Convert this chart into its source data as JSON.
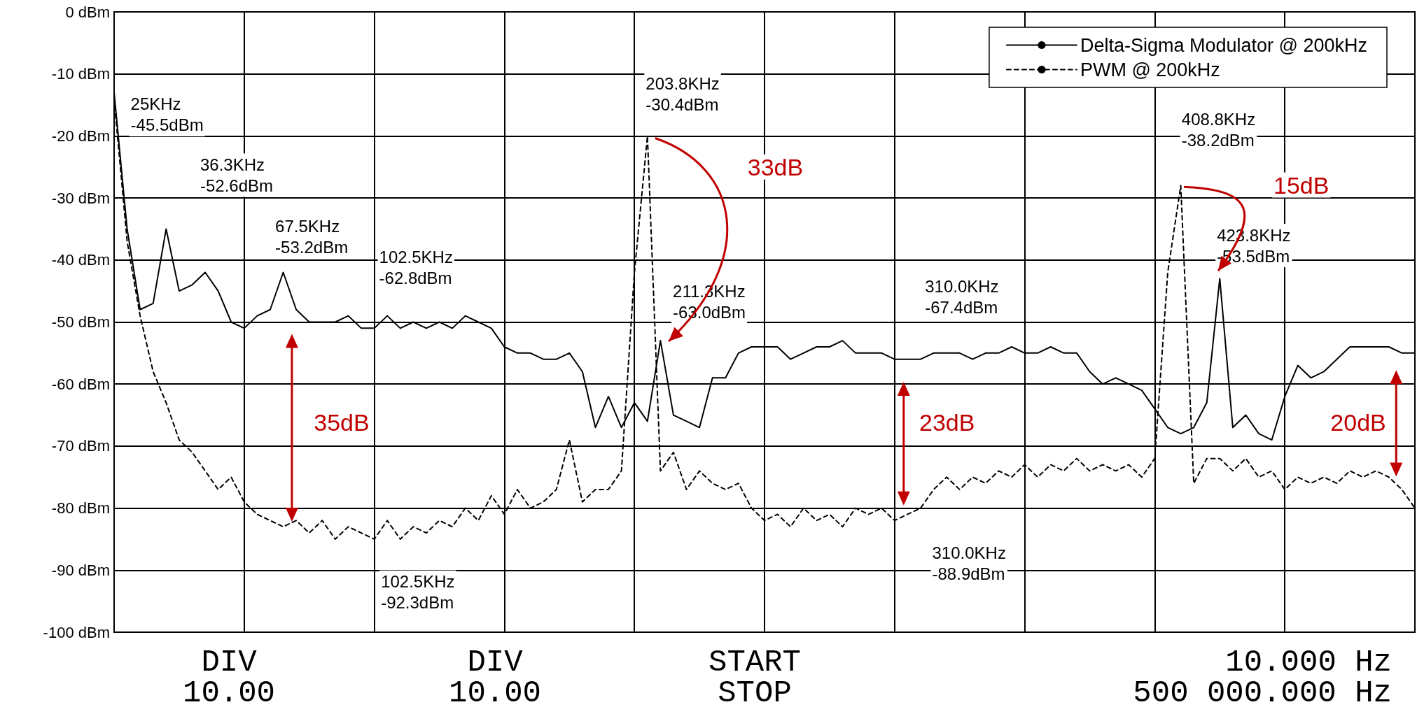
{
  "chart_data": {
    "type": "line",
    "categories": [
      null,
      null,
      null,
      null,
      null,
      null,
      null,
      null,
      null,
      null,
      null,
      null,
      null,
      null,
      null,
      null,
      null,
      null,
      null,
      null,
      null,
      null,
      null,
      null,
      null,
      null,
      null,
      null,
      null,
      null,
      null,
      null,
      null,
      null,
      null,
      null,
      null,
      null,
      null,
      null,
      null,
      null,
      null,
      null,
      null,
      null,
      null,
      null,
      null,
      null,
      null,
      null,
      null,
      null,
      null,
      null,
      null,
      null,
      null,
      null,
      null,
      null,
      null,
      null,
      null,
      null,
      null,
      null,
      null,
      null,
      null,
      null,
      null,
      null,
      null,
      null,
      null,
      null,
      null,
      null,
      null,
      null,
      null,
      null,
      null,
      null,
      null,
      null,
      null,
      null,
      null,
      null,
      null,
      null,
      null,
      null,
      null,
      null,
      null,
      null,
      null
    ],
    "ylim": [
      -100,
      0
    ],
    "yticks": [
      {
        "value": -100,
        "label": "-100 dBm"
      },
      {
        "value": -90,
        "label": "-90 dBm"
      },
      {
        "value": -80,
        "label": "-80 dBm"
      },
      {
        "value": -70,
        "label": "-70 dBm"
      },
      {
        "value": -60,
        "label": "-60 dBm"
      },
      {
        "value": -50,
        "label": "-50 dBm"
      },
      {
        "value": -40,
        "label": "-40 dBm"
      },
      {
        "value": -30,
        "label": "-30 dBm"
      },
      {
        "value": -20,
        "label": "-20 dBm"
      },
      {
        "value": -10,
        "label": "-10 dBm"
      },
      {
        "value": 0,
        "label": "0 dBm"
      }
    ],
    "tick_labels": "y",
    "grid": true,
    "legend": "top right",
    "marker": "none",
    "series": [
      {
        "name": "Delta-Sigma Modulator @ 200kHz",
        "color": "#000000",
        "line_style": "solid",
        "values": [
          -13,
          -35,
          -48,
          -47,
          -35,
          -45,
          -44,
          -42,
          -45,
          -50,
          -51,
          -49,
          -48,
          -42,
          -48,
          -50,
          -50,
          -50,
          -49,
          -51,
          -51,
          -49,
          -51,
          -50,
          -51,
          -50,
          -51,
          -49,
          -50,
          -51,
          -54,
          -55,
          -55,
          -56,
          -56,
          -55,
          -58,
          -67,
          -62,
          -67,
          -63,
          -66,
          -53,
          -65,
          -66,
          -67,
          -59,
          -59,
          -55,
          -54,
          -54,
          -54,
          -56,
          -55,
          -54,
          -54,
          -53,
          -55,
          -55,
          -55,
          -56,
          -56,
          -56,
          -55,
          -55,
          -55,
          -56,
          -55,
          -55,
          -54,
          -55,
          -55,
          -54,
          -55,
          -55,
          -58,
          -60,
          -59,
          -60,
          -61,
          -64,
          -67,
          -68,
          -67,
          -63,
          -43,
          -67,
          -65,
          -68,
          -69,
          -62,
          -57,
          -59,
          -58,
          -56,
          -54,
          -54,
          -54,
          -54,
          -55,
          -55
        ]
      },
      {
        "name": "PWM @ 200kHz",
        "color": "#000000",
        "line_style": "dashed",
        "values": [
          -14,
          -37,
          -49,
          -58,
          -63,
          -69,
          -71,
          -74,
          -77,
          -75,
          -79,
          -81,
          -82,
          -83,
          -82,
          -84,
          -82,
          -85,
          -83,
          -84,
          -85,
          -82,
          -85,
          -83,
          -84,
          -82,
          -83,
          -80,
          -82,
          -78,
          -81,
          -77,
          -80,
          -79,
          -77,
          -69,
          -79,
          -77,
          -77,
          -74,
          -42,
          -20,
          -74,
          -71,
          -77,
          -74,
          -76,
          -77,
          -76,
          -80,
          -82,
          -81,
          -83,
          -80,
          -82,
          -81,
          -83,
          -80,
          -81,
          -80,
          -82,
          -81,
          -80,
          -77,
          -75,
          -77,
          -75,
          -76,
          -74,
          -75,
          -73,
          -75,
          -73,
          -74,
          -72,
          -74,
          -73,
          -74,
          -73,
          -75,
          -72,
          -42,
          -28,
          -76,
          -72,
          -72,
          -74,
          -72,
          -75,
          -74,
          -77,
          -75,
          -76,
          -75,
          -76,
          -74,
          -75,
          -74,
          -75,
          -77,
          -80
        ]
      }
    ],
    "annotations": [
      "25KHz\n-45.5dBm",
      "36.3KHz\n-52.6dBm",
      "67.5KHz\n-53.2dBm",
      "102.5KHz\n-62.8dBm",
      "102.5KHz\n-92.3dBm",
      "203.8KHz\n-30.4dBm",
      "211.3KHz\n-63.0dBm",
      "310.0KHz\n-67.4dBm",
      "310.0KHz\n-88.9dBm",
      "408.8KHz\n-38.2dBm",
      "423.8KHz\n-53.5dBm",
      "33dB",
      "15dB",
      "35dB",
      "23dB",
      "20dB",
      "DIV\n10.00",
      "DIV\n10.00",
      "START\nSTOP",
      "10.000 Hz\n500 000.000 Hz"
    ]
  }
}
